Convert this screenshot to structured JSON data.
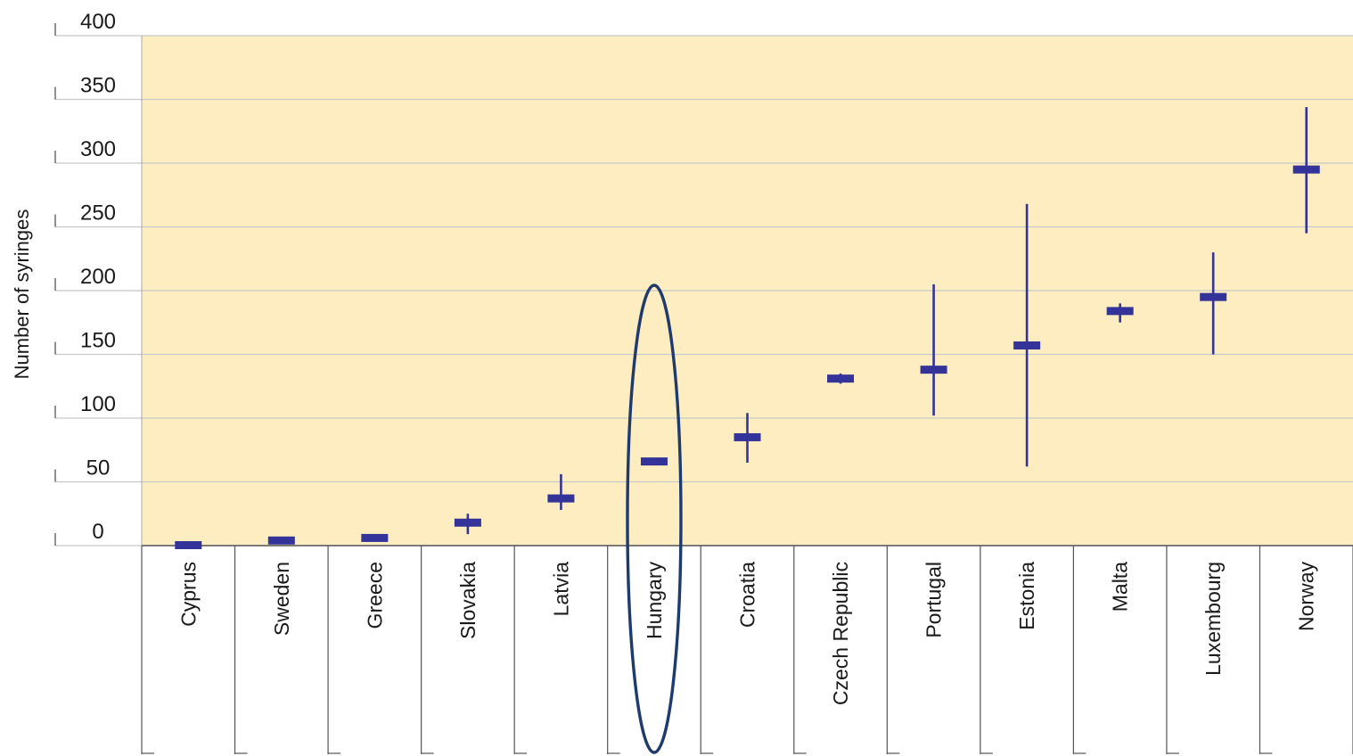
{
  "chart_data": {
    "type": "range",
    "ylabel": "Number of syringes",
    "ylim": [
      0,
      400
    ],
    "yticks": [
      "0",
      "50",
      "100",
      "150",
      "200",
      "250",
      "300",
      "350",
      "400"
    ],
    "grid": true,
    "categories": [
      "Cyprus",
      "Sweden",
      "Greece",
      "Slovakia",
      "Latvia",
      "Hungary",
      "Croatia",
      "Czech Republic",
      "Portugal",
      "Estonia",
      "Malta",
      "Luxembourg",
      "Norway"
    ],
    "series": [
      {
        "values": [
          0,
          4,
          6,
          18,
          37,
          66,
          85,
          131,
          138,
          157,
          184,
          195,
          295
        ],
        "low": [
          0,
          4,
          6,
          9,
          28,
          66,
          65,
          127,
          102,
          62,
          175,
          150,
          245
        ],
        "high": [
          0,
          4,
          6,
          25,
          56,
          66,
          104,
          135,
          205,
          268,
          190,
          230,
          344
        ]
      }
    ],
    "highlight": {
      "category": "Hungary",
      "shape": "ellipse"
    },
    "colors": {
      "plot_background": "#fdedc0",
      "marker": "#33339a",
      "highlight": "#1f3b6e",
      "grid": "#c8c8c8"
    }
  }
}
